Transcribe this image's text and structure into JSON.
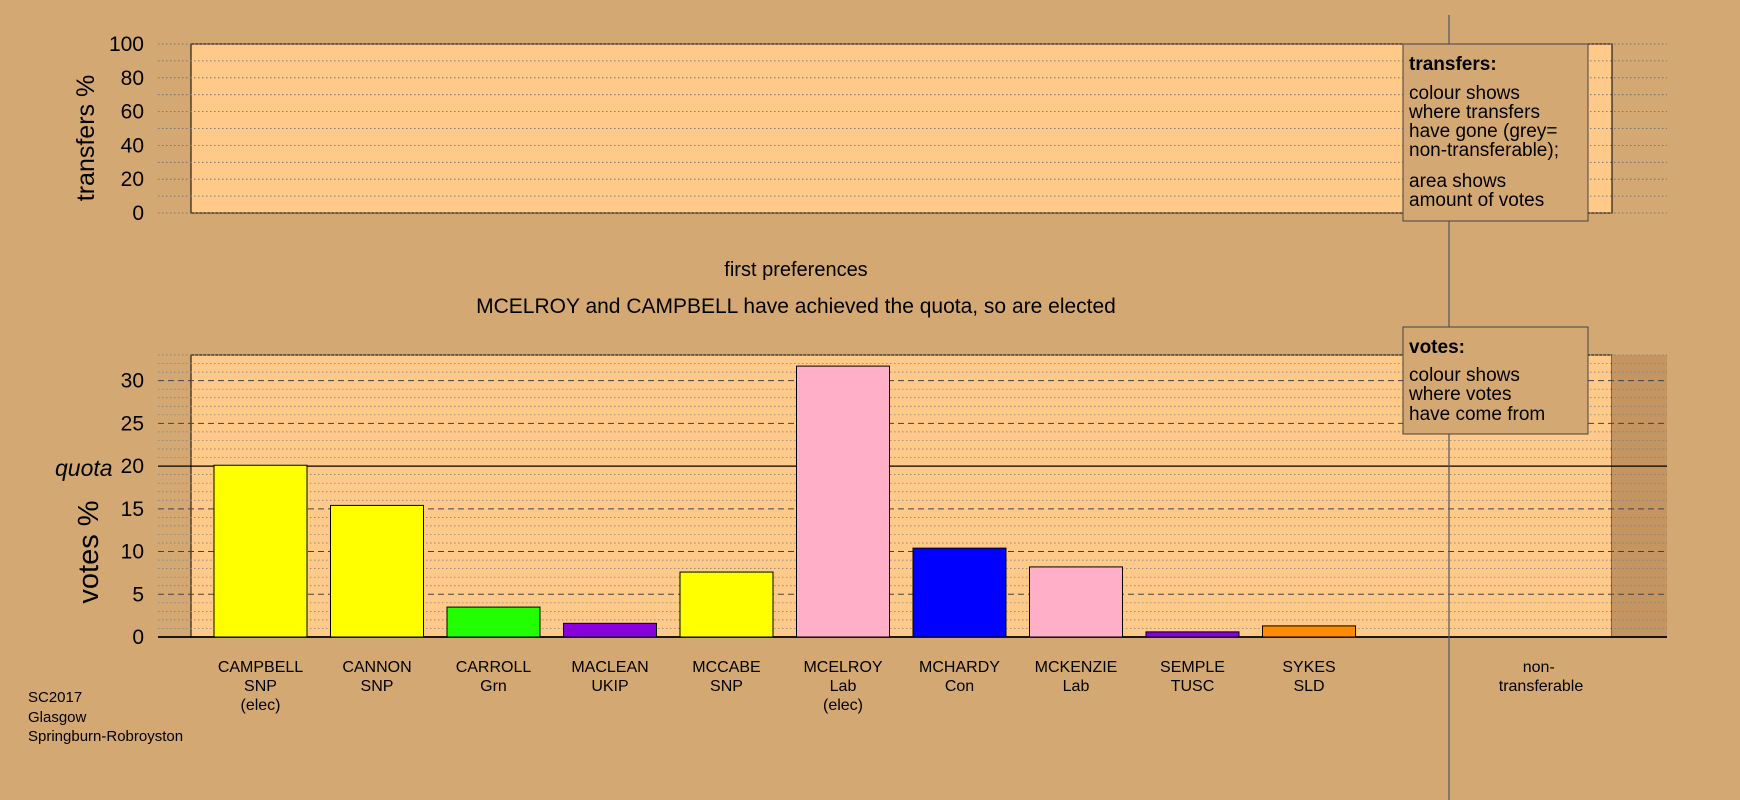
{
  "colors": {
    "background": "#d4a872",
    "plot_fill": "#ffc98a",
    "shade_fill": "#c49560",
    "SNP": "#ffff00",
    "Grn": "#22ff00",
    "UKIP": "#8800dd",
    "Lab": "#ffb0c8",
    "Con": "#0000ff",
    "TUSC": "#8800dd",
    "SLD": "#ff8c00"
  },
  "chart_data": [
    {
      "type": "bar",
      "title": "",
      "ylabel": "transfers %",
      "ylim": [
        0,
        100
      ],
      "yticks": [
        0,
        20,
        40,
        60,
        80,
        100
      ],
      "minor_grid_step": 10,
      "series": []
    },
    {
      "type": "bar",
      "ylabel": "votes %",
      "ylim": [
        0,
        33
      ],
      "yticks": [
        0,
        5,
        10,
        15,
        20,
        25,
        30
      ],
      "minor_grid_step": 1,
      "quota_label": "quota",
      "quota": 20,
      "categories": [
        "CAMPBELL",
        "CANNON",
        "CARROLL",
        "MACLEAN",
        "MCCABE",
        "MCELROY",
        "MCHARDY",
        "MCKENZIE",
        "SEMPLE",
        "SYKES"
      ],
      "parties": [
        "SNP",
        "SNP",
        "Grn",
        "UKIP",
        "SNP",
        "Lab",
        "Con",
        "Lab",
        "TUSC",
        "SLD"
      ],
      "notes": [
        "(elec)",
        "",
        "",
        "",
        "",
        "(elec)",
        "",
        "",
        "",
        ""
      ],
      "values": [
        20.1,
        15.4,
        3.5,
        1.6,
        7.6,
        31.7,
        10.4,
        8.2,
        0.6,
        1.3
      ],
      "extra_category": "non-\ntransferable"
    }
  ],
  "stage_label": "first preferences",
  "headline": "MCELROY and CAMPBELL have achieved the quota, so are elected",
  "legend_transfers": {
    "title": "transfers:",
    "lines1": [
      "colour shows",
      "where transfers",
      "have gone (grey=",
      "non-transferable);"
    ],
    "lines2": [
      "area shows",
      "amount of votes"
    ]
  },
  "legend_votes": {
    "title": "votes:",
    "lines": [
      "colour shows",
      "where votes",
      "have come from"
    ]
  },
  "footer": {
    "lines": [
      "SC2017",
      "Glasgow",
      "Springburn-Robroyston"
    ]
  }
}
